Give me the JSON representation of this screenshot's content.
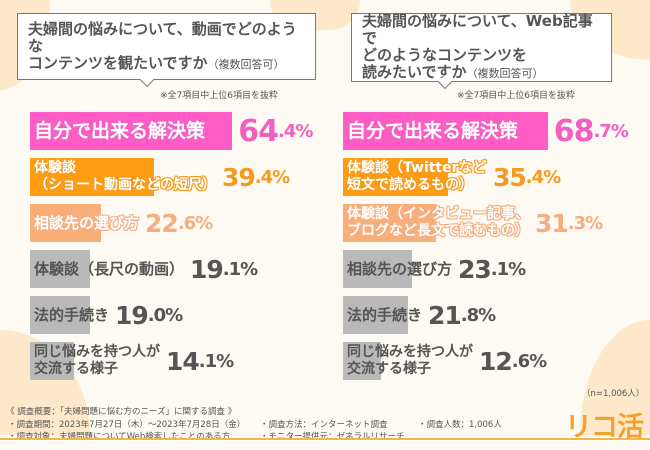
{
  "chart_data": [
    {
      "type": "bar",
      "orientation": "horizontal",
      "title": "夫婦間の悩みについて、動画でどのようなコンテンツを観たいですか",
      "title_note": "（複数回答可）",
      "note": "※全7項目中上位6項目を抜粋",
      "categories": [
        "自分で出来る解決策",
        "体験談\n（ショート動画などの短尺）",
        "相談先の選び方",
        "体験談（長尺の動画）",
        "法的手続き",
        "同じ悩みを持つ人が\n交流する様子"
      ],
      "values": [
        64.4,
        39.4,
        22.6,
        19.1,
        19.0,
        14.1
      ],
      "labels": [
        "64.4%",
        "39.4%",
        "22.6%",
        "19.1%",
        "19.0%",
        "14.1%"
      ],
      "colors": [
        "#ff5cc6",
        "#ff9d12",
        "#f9ae78",
        "#b9b9b9",
        "#b9b9b9",
        "#b9b9b9"
      ],
      "value_colors": [
        "#f25fc2",
        "#f59a1e",
        "#f5ad80",
        "#555555",
        "#555555",
        "#555555"
      ]
    },
    {
      "type": "bar",
      "orientation": "horizontal",
      "title": "夫婦間の悩みについて、Web記事でどのようなコンテンツを読みたいですか",
      "title_note": "（複数回答可）",
      "note": "※全7項目中上位6項目を抜粋",
      "categories": [
        "自分で出来る解決策",
        "体験談（Twitterなど\n短文で読めるもの）",
        "体験談（インタビュー記事、\nブログなど長文で読むもの）",
        "相談先の選び方",
        "法的手続き",
        "同じ悩みを持つ人が\n交流する様子"
      ],
      "values": [
        68.7,
        35.4,
        31.3,
        23.1,
        21.8,
        12.6
      ],
      "labels": [
        "68.7%",
        "35.4%",
        "31.3%",
        "23.1%",
        "21.8%",
        "12.6%"
      ],
      "colors": [
        "#ff5cc6",
        "#ff9d12",
        "#f9ae78",
        "#b9b9b9",
        "#b9b9b9",
        "#b9b9b9"
      ],
      "value_colors": [
        "#f25fc2",
        "#f59a1e",
        "#f5ad80",
        "#555555",
        "#555555",
        "#555555"
      ]
    }
  ],
  "left": {
    "q1": "夫婦間の悩みについて、動画でどのような",
    "q2": "コンテンツを観たいですか",
    "q_note": "（複数回答可）"
  },
  "right": {
    "q1": "夫婦間の悩みについて、Web記事で",
    "q2": "どのようなコンテンツを",
    "q3": "読みたいですか",
    "q_note": "（複数回答可）"
  },
  "sample": "（n=1,006人）",
  "footer": {
    "title": "《 調査概要：「夫婦問題に悩む方のニーズ」に関する調査 》",
    "period": "・調査期間：2023年7月27日（木）～2023年7月28日（金）",
    "target": "・調査対象：夫婦問題についてWeb検索したことのある方",
    "method": "・調査方法：インターネット調査",
    "provider": "・モニター提供元：ゼネラルリサーチ",
    "count": "・調査人数：1,006人"
  },
  "logo": "リコ活"
}
